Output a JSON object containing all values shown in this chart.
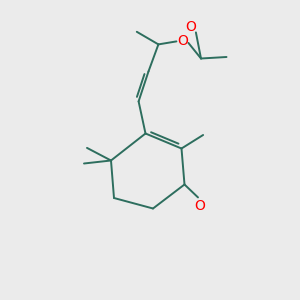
{
  "background_color": "#ebebeb",
  "bond_color": "#2d6e5e",
  "oxygen_color": "#ff0000",
  "figsize": [
    3.0,
    3.0
  ],
  "dpi": 100,
  "lw": 1.4,
  "xlim": [
    0,
    10
  ],
  "ylim": [
    0,
    10
  ]
}
